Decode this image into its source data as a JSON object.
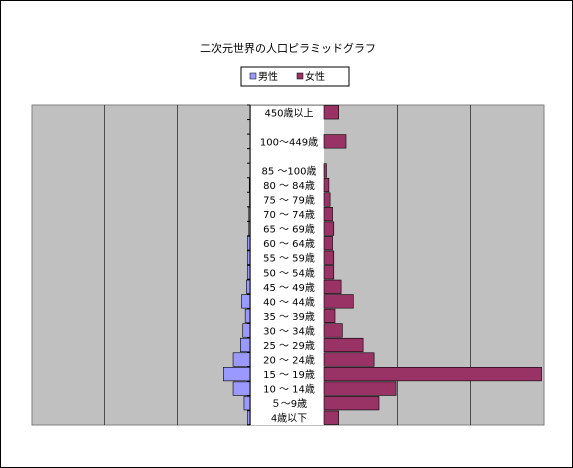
{
  "chart_data": {
    "type": "bar",
    "orientation": "horizontal-pyramid",
    "title": "二次元世界の人口ピラミッドグラフ",
    "xlabel": "",
    "ylabel": "",
    "legend_position": "top",
    "grid": true,
    "xlim": [
      -90,
      90
    ],
    "categories": [
      "4歳以下",
      "５～9歳",
      "10 ～ 14歳",
      "15 ～ 19歳",
      "20 ～ 24歳",
      "25 ～ 29歳",
      "30 ～ 34歳",
      "35 ～ 39歳",
      "40 ～ 44歳",
      "45 ～ 49歳",
      "50 ～ 54歳",
      "55 ～ 59歳",
      "60 ～ 64歳",
      "65 ～ 69歳",
      "70 ～ 74歳",
      "75 ～ 79歳",
      "80 ～ 84歳",
      "85 ～100歳",
      "",
      "100～449歳",
      "",
      "450歳以上"
    ],
    "series": [
      {
        "name": "男性",
        "color": "#9999ff",
        "values": [
          1,
          2.5,
          7,
          11,
          7,
          4,
          3,
          2,
          3.5,
          1.5,
          1,
          1,
          1,
          0.5,
          0.5,
          0.2,
          0.3,
          0,
          0,
          0,
          0,
          0
        ]
      },
      {
        "name": "女性",
        "color": "#993366",
        "values": [
          6,
          22.5,
          29.5,
          89,
          20.5,
          16,
          7.5,
          4.5,
          12,
          7,
          4,
          4,
          3.5,
          4,
          3.5,
          2.5,
          2,
          1,
          0,
          9,
          0,
          6
        ]
      }
    ]
  }
}
